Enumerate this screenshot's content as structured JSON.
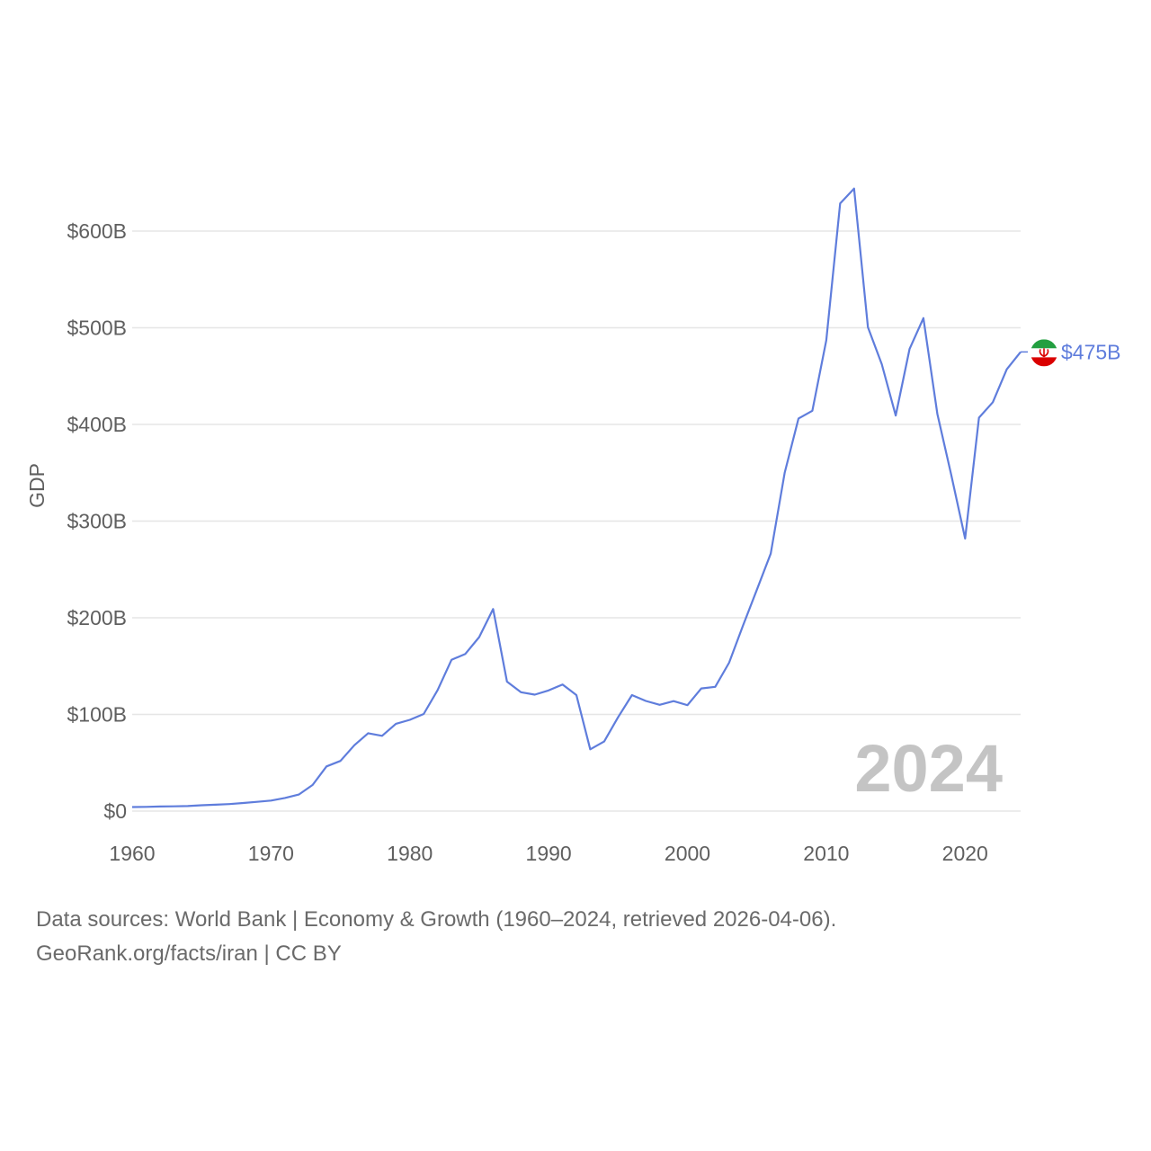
{
  "chart_data": {
    "type": "line",
    "title": "",
    "xlabel": "",
    "ylabel": "GDP",
    "xlim": [
      1960,
      2024
    ],
    "ylim": [
      0,
      600
    ],
    "y_ticks": [
      {
        "value": 0,
        "label": "$0"
      },
      {
        "value": 100,
        "label": "$100B"
      },
      {
        "value": 200,
        "label": "$200B"
      },
      {
        "value": 300,
        "label": "$300B"
      },
      {
        "value": 400,
        "label": "$400B"
      },
      {
        "value": 500,
        "label": "$500B"
      },
      {
        "value": 600,
        "label": "$600B"
      }
    ],
    "x_ticks": [
      {
        "value": 1960,
        "label": "1960"
      },
      {
        "value": 1970,
        "label": "1970"
      },
      {
        "value": 1980,
        "label": "1980"
      },
      {
        "value": 1990,
        "label": "1990"
      },
      {
        "value": 2000,
        "label": "2000"
      },
      {
        "value": 2010,
        "label": "2010"
      },
      {
        "value": 2020,
        "label": "2020"
      }
    ],
    "grid": true,
    "series": [
      {
        "name": "Iran",
        "unit": "billion USD",
        "x": [
          1960,
          1961,
          1962,
          1963,
          1964,
          1965,
          1966,
          1967,
          1968,
          1969,
          1970,
          1971,
          1972,
          1973,
          1974,
          1975,
          1976,
          1977,
          1978,
          1979,
          1980,
          1981,
          1982,
          1983,
          1984,
          1985,
          1986,
          1987,
          1988,
          1989,
          1990,
          1991,
          1992,
          1993,
          1994,
          1995,
          1996,
          1997,
          1998,
          1999,
          2000,
          2001,
          2002,
          2003,
          2004,
          2005,
          2006,
          2007,
          2008,
          2009,
          2010,
          2011,
          2012,
          2013,
          2014,
          2015,
          2016,
          2017,
          2018,
          2019,
          2020,
          2021,
          2022,
          2023,
          2024
        ],
        "values": [
          4.2,
          4.4,
          4.7,
          4.9,
          5.2,
          6.0,
          6.6,
          7.3,
          8.4,
          9.6,
          10.9,
          13.6,
          17.1,
          27.1,
          46.2,
          51.9,
          68.1,
          80.6,
          77.9,
          90.3,
          94.4,
          100.5,
          125.0,
          156.5,
          162.6,
          180.0,
          209.0,
          134.0,
          123.0,
          120.5,
          124.8,
          131.0,
          120.0,
          63.9,
          72.0,
          97.0,
          120.0,
          114.0,
          110.0,
          113.8,
          109.6,
          126.9,
          128.6,
          153.5,
          192.0,
          229.0,
          266.3,
          349.9,
          406.1,
          414.1,
          487.1,
          628.6,
          644.0,
          500.6,
          462.3,
          409.2,
          478.0,
          510.0,
          411.0,
          348.0,
          282.0,
          407.0,
          423.0,
          457.0,
          475.0
        ],
        "color": "#5f7ddc"
      }
    ],
    "end_label": "$475B",
    "year_watermark": "2024",
    "flag_colors": {
      "green": "#239f40",
      "white": "#ffffff",
      "red": "#da0000"
    },
    "flag_icon": "iran-flag-icon"
  },
  "footer": {
    "line1": "Data sources: World Bank | Economy & Growth (1960–2024, retrieved 2026-04-06).",
    "line2": "GeoRank.org/facts/iran | CC BY"
  }
}
